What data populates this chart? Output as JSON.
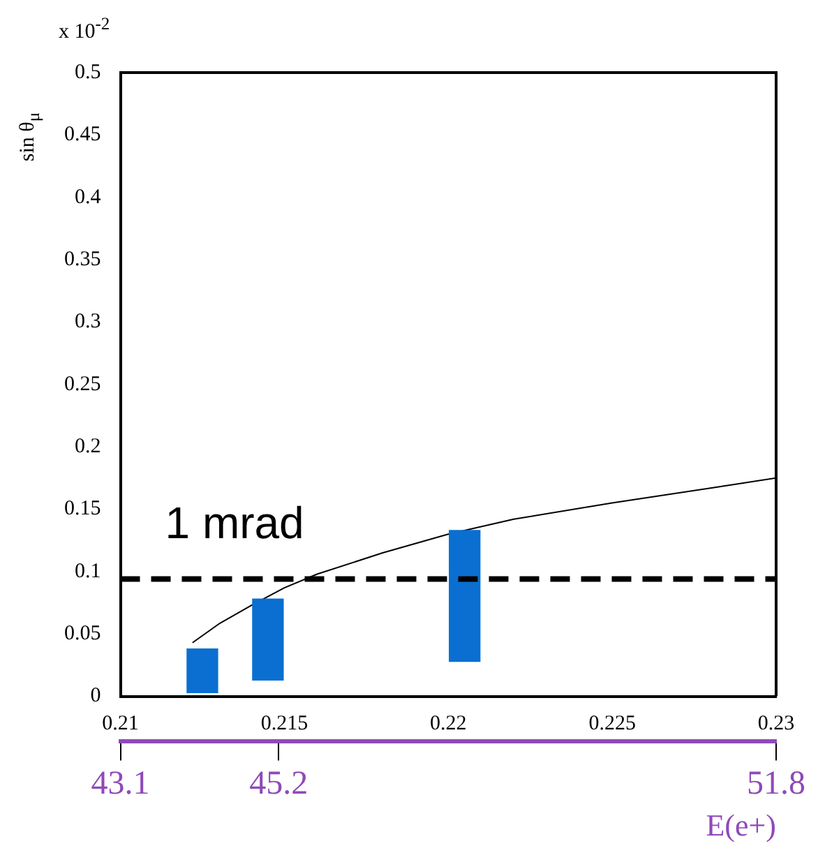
{
  "chart_data": {
    "type": "bar",
    "ylabel": "sin θ$_{μ}$",
    "x2label": "E(e+)",
    "annotations": [
      "x 10$^{-2}$"
    ],
    "xlim": [
      0.21,
      0.23
    ],
    "xticks": [
      0.21,
      0.215,
      0.22,
      0.225,
      0.23
    ],
    "x2lim": [
      43.1,
      51.8
    ],
    "x2ticks": [
      43.1,
      45.2,
      51.8
    ],
    "ylim": [
      0,
      0.5
    ],
    "yticks": [
      0,
      0.05,
      0.1,
      0.15,
      0.2,
      0.25,
      0.3,
      0.35,
      0.4,
      0.45,
      0.5
    ],
    "grid": false,
    "legend": false,
    "ref_lines": [
      {
        "axis": "y",
        "value": 0.094,
        "label": "1 mrad",
        "color": "#000000",
        "line_style": "dashed"
      }
    ],
    "series": [
      {
        "color": "#0a6fd0",
        "x": [
          0.2125,
          0.2145,
          0.2205
        ],
        "base": [
          0.003,
          0.013,
          0.028
        ],
        "values": [
          0.035,
          0.065,
          0.105
        ]
      },
      {
        "type": "line",
        "color": "#000000",
        "marker": "none",
        "line_style": "solid",
        "x": [
          0.2122,
          0.213,
          0.214,
          0.215,
          0.216,
          0.218,
          0.22,
          0.222,
          0.225,
          0.228,
          0.23
        ],
        "values": [
          0.043,
          0.058,
          0.073,
          0.087,
          0.098,
          0.115,
          0.13,
          0.142,
          0.155,
          0.167,
          0.175
        ]
      }
    ]
  }
}
